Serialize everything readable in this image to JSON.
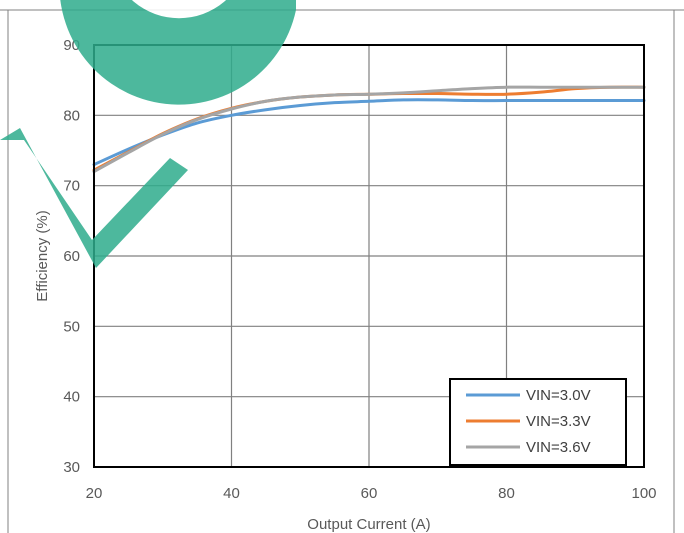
{
  "chart_data": {
    "type": "line",
    "title": "",
    "xlabel": "Output Current (A)",
    "ylabel": "Efficiency (%)",
    "xlim": [
      20,
      100
    ],
    "ylim": [
      30,
      90
    ],
    "xticks": [
      20,
      40,
      60,
      80,
      100
    ],
    "yticks": [
      30,
      40,
      50,
      60,
      70,
      80,
      90
    ],
    "grid": true,
    "legend_position": "bottom-right",
    "series": [
      {
        "name": "VIN=3.0V",
        "color": "#5b9bd5",
        "x": [
          20,
          25,
          30,
          35,
          40,
          45,
          50,
          55,
          60,
          65,
          70,
          75,
          80,
          85,
          90,
          95,
          100
        ],
        "y": [
          73.0,
          75.2,
          77.2,
          78.9,
          80.0,
          80.8,
          81.4,
          81.8,
          82.0,
          82.2,
          82.2,
          82.1,
          82.1,
          82.1,
          82.1,
          82.1,
          82.1
        ]
      },
      {
        "name": "VIN=3.3V",
        "color": "#ed7d31",
        "x": [
          20,
          25,
          30,
          35,
          40,
          45,
          50,
          55,
          60,
          65,
          70,
          75,
          80,
          85,
          90,
          95,
          100
        ],
        "y": [
          72.2,
          74.8,
          77.4,
          79.5,
          81.0,
          82.0,
          82.6,
          82.9,
          83.0,
          83.1,
          83.1,
          83.0,
          83.0,
          83.3,
          83.8,
          84.0,
          84.0
        ]
      },
      {
        "name": "VIN=3.6V",
        "color": "#a5a5a5",
        "x": [
          20,
          25,
          30,
          35,
          40,
          45,
          50,
          55,
          60,
          65,
          70,
          75,
          80,
          85,
          90,
          95,
          100
        ],
        "y": [
          72.0,
          74.7,
          77.3,
          79.4,
          80.9,
          82.0,
          82.6,
          82.9,
          83.0,
          83.2,
          83.5,
          83.8,
          84.0,
          84.0,
          84.0,
          84.0,
          84.0
        ]
      }
    ]
  },
  "watermark": {
    "color": "#2eac8c",
    "name": "watermark-logo"
  }
}
